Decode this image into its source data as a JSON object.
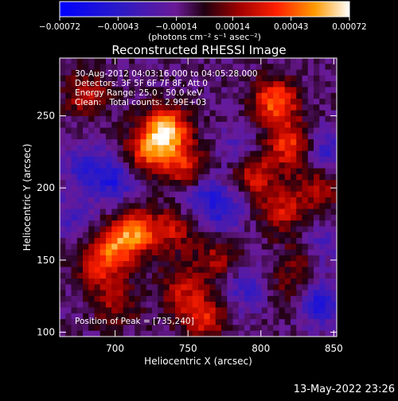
{
  "colorbar": {
    "unit_label": "(photons cm⁻² s⁻¹ asec⁻²)",
    "ticks": [
      {
        "value": -0.00072,
        "label": "−0.00072"
      },
      {
        "value": -0.00043,
        "label": "−0.00043"
      },
      {
        "value": -0.00014,
        "label": "−0.00014"
      },
      {
        "value": 0.00014,
        "label": "0.00014"
      },
      {
        "value": 0.00043,
        "label": "0.00043"
      },
      {
        "value": 0.00072,
        "label": "0.00072"
      }
    ],
    "range": [
      -0.00072,
      0.00072
    ]
  },
  "chart_data": {
    "type": "heatmap",
    "title": "Reconstructed RHESSI Image",
    "xlabel": "Heliocentric X (arcsec)",
    "ylabel": "Heliocentric Y (arcsec)",
    "xlim": [
      662,
      852
    ],
    "ylim": [
      97,
      290
    ],
    "xticks": [
      700,
      750,
      800,
      850
    ],
    "yticks": [
      100,
      150,
      200,
      250
    ],
    "info_lines": [
      "30-Aug-2012 04:03:16.000 to 04:05:28.000",
      "Detectors: 3F 5F 6F 7F 8F, Att 0",
      "Energy Range: 25.0 - 50.0 keV",
      "Clean:   Total counts: 2.99E+03"
    ],
    "peak_label": "Position of Peak = [735,240]",
    "peak_position": [
      735,
      240
    ],
    "hot_spots": [
      {
        "x": 735,
        "y": 240,
        "intensity": 0.00072
      },
      {
        "x": 722,
        "y": 225,
        "intensity": 0.00045
      },
      {
        "x": 748,
        "y": 215,
        "intensity": 0.0004
      },
      {
        "x": 715,
        "y": 170,
        "intensity": 0.00048
      },
      {
        "x": 700,
        "y": 160,
        "intensity": 0.0004
      },
      {
        "x": 690,
        "y": 145,
        "intensity": 0.00035
      },
      {
        "x": 740,
        "y": 170,
        "intensity": 0.0003
      },
      {
        "x": 810,
        "y": 260,
        "intensity": 0.00055
      },
      {
        "x": 820,
        "y": 230,
        "intensity": 0.00045
      },
      {
        "x": 795,
        "y": 210,
        "intensity": 0.0004
      },
      {
        "x": 815,
        "y": 185,
        "intensity": 0.00035
      },
      {
        "x": 840,
        "y": 200,
        "intensity": 0.0003
      },
      {
        "x": 770,
        "y": 150,
        "intensity": 0.00028
      },
      {
        "x": 760,
        "y": 110,
        "intensity": 0.0004
      },
      {
        "x": 745,
        "y": 130,
        "intensity": 0.0003
      },
      {
        "x": 680,
        "y": 265,
        "intensity": 0.0003
      },
      {
        "x": 700,
        "y": 120,
        "intensity": 0.00025
      },
      {
        "x": 820,
        "y": 130,
        "intensity": 0.0002
      },
      {
        "x": 830,
        "y": 155,
        "intensity": 0.00025
      }
    ],
    "cold_spots": [
      {
        "x": 700,
        "y": 205,
        "intensity": -0.00035
      },
      {
        "x": 680,
        "y": 215,
        "intensity": -0.0003
      },
      {
        "x": 760,
        "y": 195,
        "intensity": -0.00025
      },
      {
        "x": 775,
        "y": 185,
        "intensity": -0.0003
      },
      {
        "x": 840,
        "y": 120,
        "intensity": -0.0004
      },
      {
        "x": 845,
        "y": 225,
        "intensity": -0.0003
      },
      {
        "x": 790,
        "y": 130,
        "intensity": -0.00025
      },
      {
        "x": 840,
        "y": 160,
        "intensity": -0.0003
      },
      {
        "x": 785,
        "y": 225,
        "intensity": -0.0002
      },
      {
        "x": 670,
        "y": 180,
        "intensity": -0.0002
      }
    ]
  },
  "timestamp": "13-May-2022 23:26"
}
